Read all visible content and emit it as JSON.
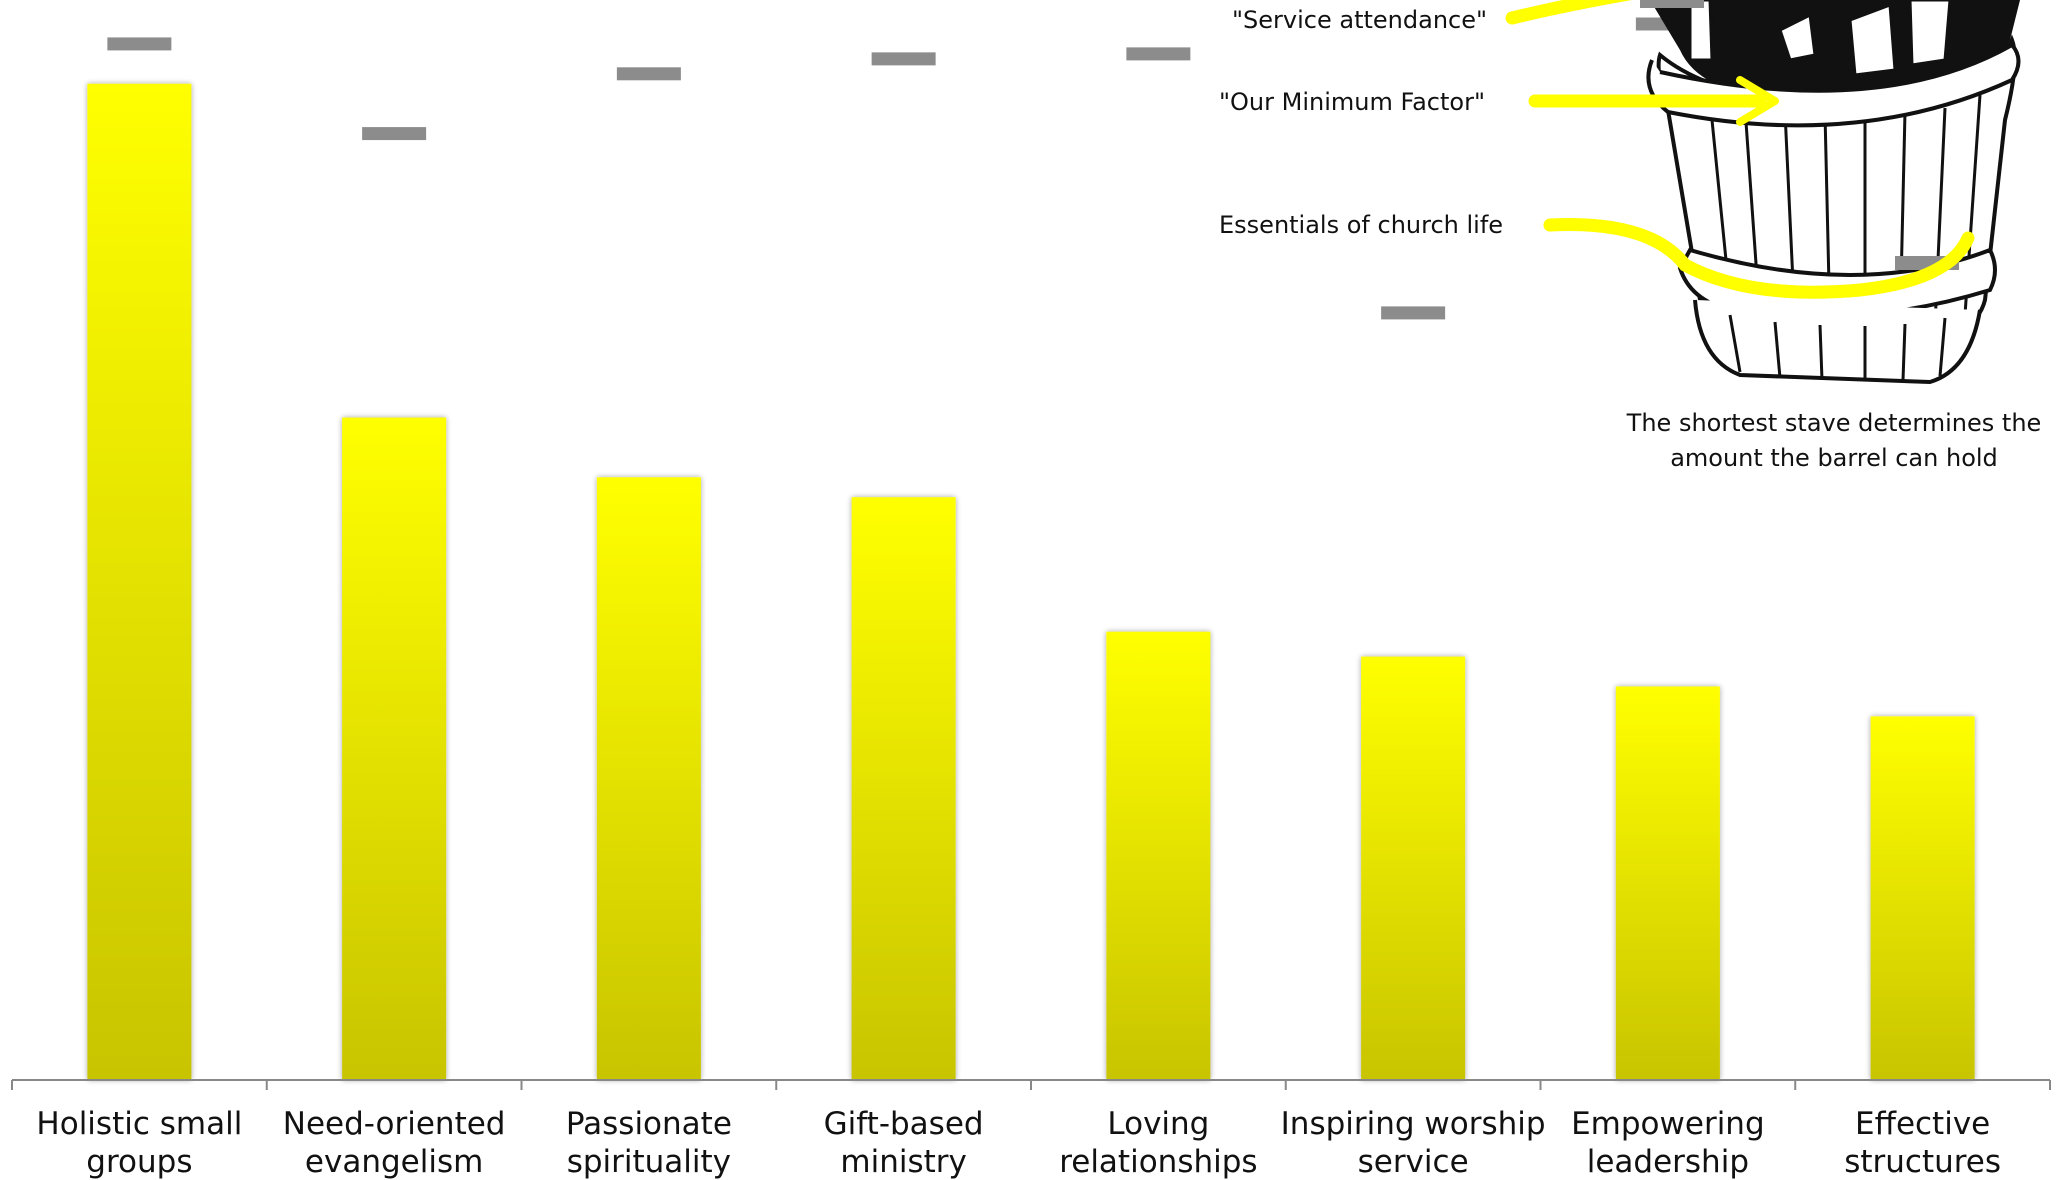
{
  "chart_data": {
    "type": "bar",
    "categories": [
      [
        "Holistic small",
        "groups"
      ],
      [
        "Need-oriented",
        "evangelism"
      ],
      [
        "Passionate",
        "spirituality"
      ],
      [
        "Gift-based",
        "ministry"
      ],
      [
        "Loving",
        "relationships"
      ],
      [
        "Inspiring worship",
        "service"
      ],
      [
        "Empowering",
        "leadership"
      ],
      [
        "Effective",
        "structures"
      ]
    ],
    "series": [
      {
        "values": [
          100,
          66.5,
          60.5,
          58.5,
          45,
          42.5,
          39.5,
          36.5
        ]
      },
      {
        "values": [
          104,
          95,
          101,
          102.5,
          103,
          77,
          106,
          79
        ]
      }
    ],
    "ylim": [
      0,
      106
    ],
    "bar_color_top": "#ffff00",
    "bar_color_bottom": "#c8c400",
    "marker_color": "#8c8c8c",
    "arrow_color": "#ffff00"
  },
  "annotations": {
    "service_attendance": "\"Service attendance\"",
    "minimum_factor": "\"Our Minimum Factor\"",
    "essentials": "Essentials of church life",
    "caption_line1": "The shortest stave determines the",
    "caption_line2": "amount the barrel can hold"
  }
}
